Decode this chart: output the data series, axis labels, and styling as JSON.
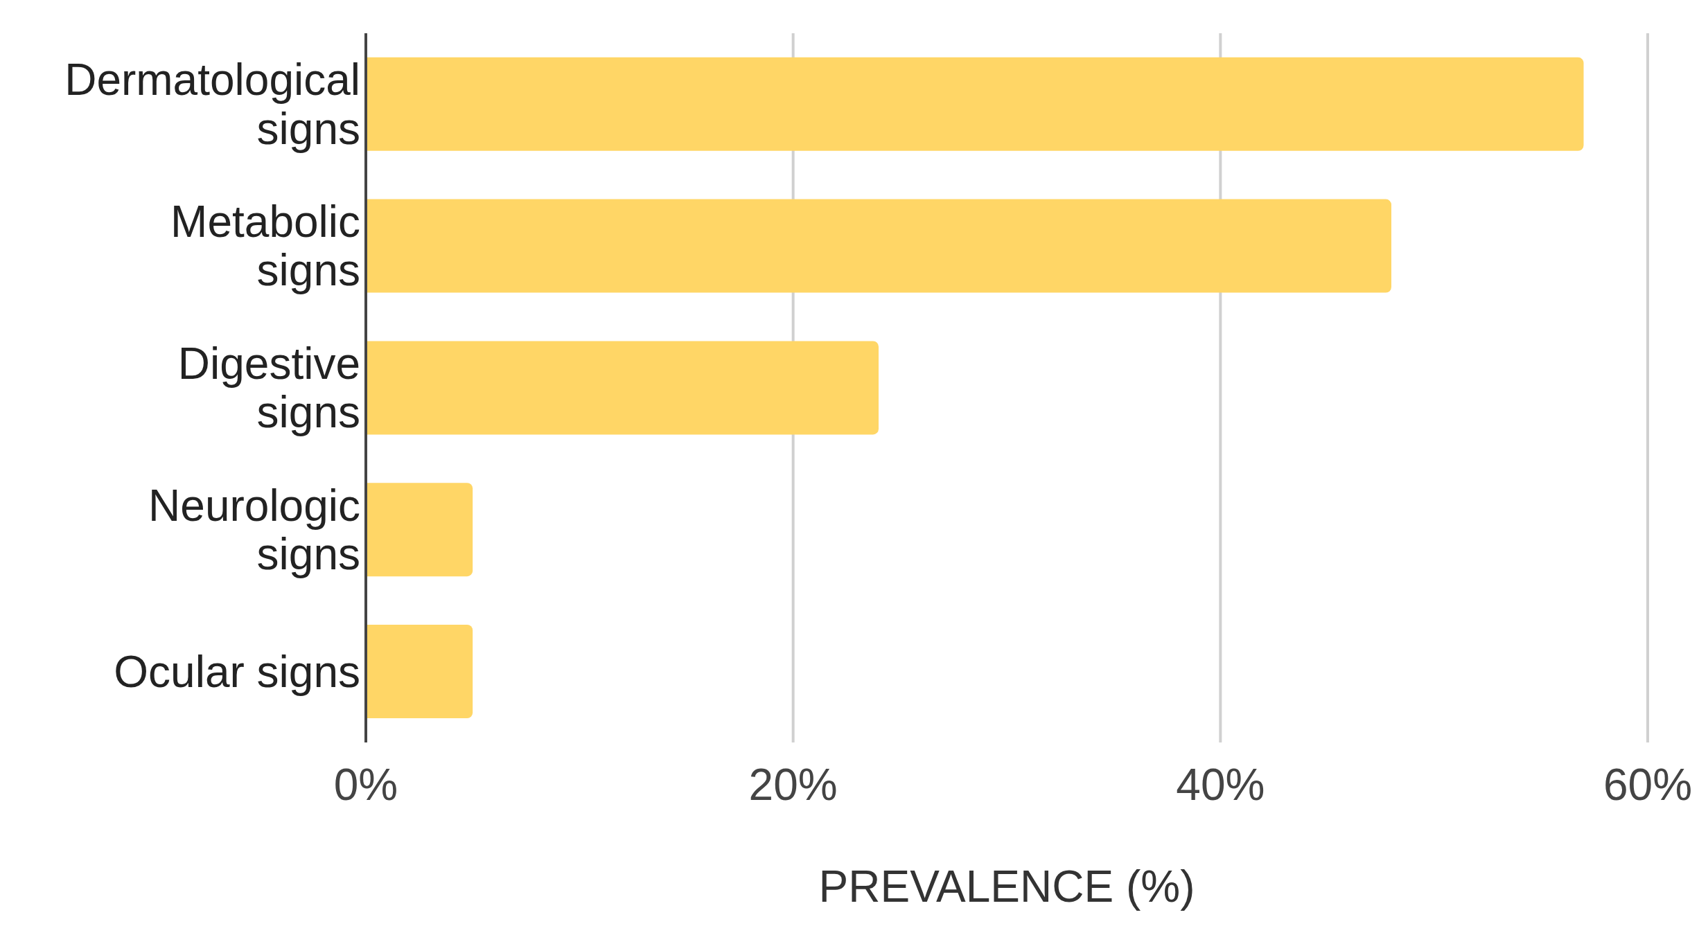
{
  "chart_data": {
    "type": "bar",
    "orientation": "horizontal",
    "categories": [
      "Dermatological signs",
      "Metabolic signs",
      "Digestive signs",
      "Neurologic signs",
      "Ocular signs"
    ],
    "values": [
      57,
      48,
      24,
      5,
      5
    ],
    "color": "#ffd666",
    "xlim": [
      0,
      60
    ],
    "xticks": [
      {
        "value": 0,
        "label": "0%"
      },
      {
        "value": 20,
        "label": "20%"
      },
      {
        "value": 40,
        "label": "40%"
      },
      {
        "value": 60,
        "label": "60%"
      }
    ],
    "xlabel": "PREVALENCE (%)",
    "grid": "x"
  }
}
